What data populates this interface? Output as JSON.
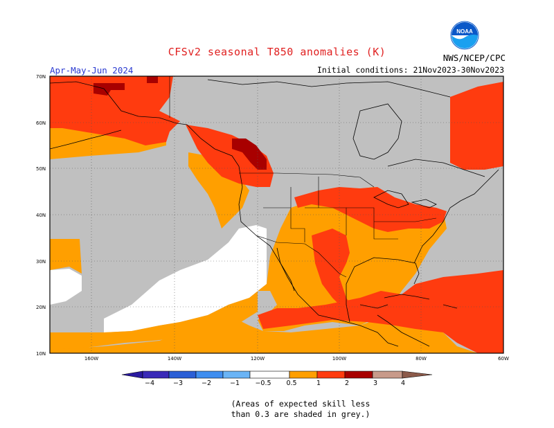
{
  "header": {
    "title": "CFSv2 seasonal T850 anomalies (K)",
    "period": "Apr-May-Jun 2024",
    "initial_conditions": "Initial conditions: 21Nov2023-30Nov2023",
    "agency": "NWS/NCEP/CPC",
    "logo_text": "NOAA"
  },
  "map": {
    "lat_labels": [
      "70N",
      "60N",
      "50N",
      "40N",
      "30N",
      "20N",
      "10N"
    ],
    "lon_labels": [
      "160W",
      "140W",
      "120W",
      "100W",
      "80W",
      "60W"
    ],
    "fill_colors": {
      "grey_low_skill": "#c0c0c0",
      "white": "#ffffff",
      "orange_0_5_to_1": "#ff9f00",
      "redorange_1_to_2": "#ff3b0f",
      "darkred_2_to_3": "#a80000",
      "border": "#000000"
    }
  },
  "colorbar": {
    "tick_labels": [
      "−4",
      "−3",
      "−2",
      "−1",
      "−0.5",
      "0.5",
      "1",
      "2",
      "3",
      "4"
    ],
    "colors": [
      "#3a2ab8",
      "#2b5fd6",
      "#3f8ef0",
      "#6ab4f6",
      "#ffffff",
      "#ff9f00",
      "#ff3b0f",
      "#a80000",
      "#c89a8a",
      "#8c5a4a"
    ]
  },
  "footnote": {
    "line1": "(Areas of expected skill less",
    "line2": "than 0.3 are shaded in grey.)"
  }
}
